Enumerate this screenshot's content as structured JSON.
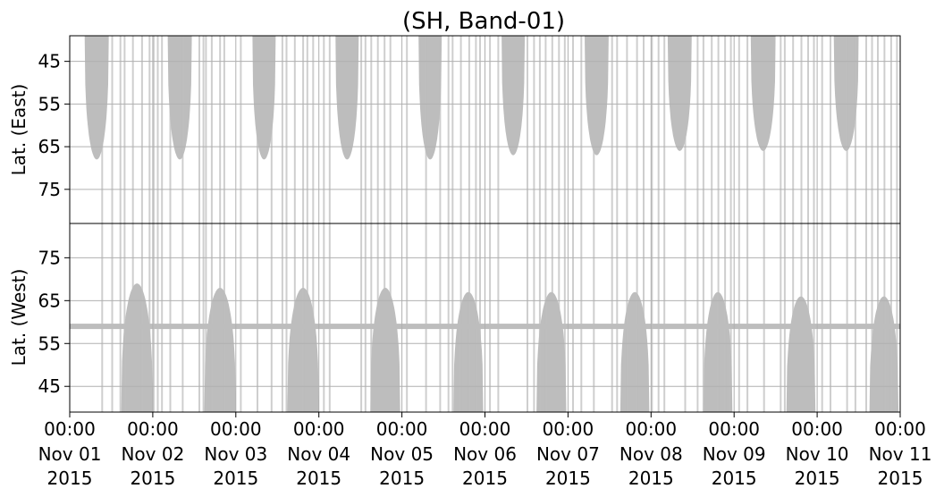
{
  "chart_data": {
    "type": "heatmap",
    "title": "(SH, Band-01)",
    "grid": true,
    "x_ticks": [
      {
        "time": "00:00",
        "date": "Nov 01",
        "year": "2015"
      },
      {
        "time": "00:00",
        "date": "Nov 02",
        "year": "2015"
      },
      {
        "time": "00:00",
        "date": "Nov 03",
        "year": "2015"
      },
      {
        "time": "00:00",
        "date": "Nov 04",
        "year": "2015"
      },
      {
        "time": "00:00",
        "date": "Nov 05",
        "year": "2015"
      },
      {
        "time": "00:00",
        "date": "Nov 06",
        "year": "2015"
      },
      {
        "time": "00:00",
        "date": "Nov 07",
        "year": "2015"
      },
      {
        "time": "00:00",
        "date": "Nov 08",
        "year": "2015"
      },
      {
        "time": "00:00",
        "date": "Nov 09",
        "year": "2015"
      },
      {
        "time": "00:00",
        "date": "Nov 10",
        "year": "2015"
      },
      {
        "time": "00:00",
        "date": "Nov 11",
        "year": "2015"
      }
    ],
    "x_range": [
      "2015-11-01 00:00",
      "2015-11-11 00:00"
    ],
    "east_panel": {
      "ylabel": "Lat. (East)",
      "yticks": [
        45,
        55,
        65,
        75
      ],
      "ylim": [
        39,
        83
      ],
      "inverted": true,
      "coverage_color": "#bdbdbd",
      "lobes": [
        {
          "start": 0.18,
          "end": 0.47,
          "max_lat": 68
        },
        {
          "start": 1.18,
          "end": 1.47,
          "max_lat": 68
        },
        {
          "start": 2.2,
          "end": 2.48,
          "max_lat": 68
        },
        {
          "start": 3.2,
          "end": 3.48,
          "max_lat": 68
        },
        {
          "start": 4.2,
          "end": 4.48,
          "max_lat": 68
        },
        {
          "start": 5.2,
          "end": 5.48,
          "max_lat": 67
        },
        {
          "start": 6.2,
          "end": 6.49,
          "max_lat": 67
        },
        {
          "start": 7.2,
          "end": 7.49,
          "max_lat": 66
        },
        {
          "start": 8.2,
          "end": 8.5,
          "max_lat": 66
        },
        {
          "start": 9.2,
          "end": 9.5,
          "max_lat": 66
        }
      ]
    },
    "west_panel": {
      "ylabel": "Lat. (West)",
      "yticks": [
        75,
        65,
        55,
        45
      ],
      "ylim": [
        83,
        39
      ],
      "coverage_color": "#bdbdbd",
      "band_lat": 59,
      "lobes": [
        {
          "start": 0.62,
          "end": 1.0,
          "max_lat": 69
        },
        {
          "start": 1.62,
          "end": 2.0,
          "max_lat": 68
        },
        {
          "start": 2.62,
          "end": 3.0,
          "max_lat": 68
        },
        {
          "start": 3.62,
          "end": 3.98,
          "max_lat": 68
        },
        {
          "start": 4.62,
          "end": 4.98,
          "max_lat": 67
        },
        {
          "start": 5.62,
          "end": 5.98,
          "max_lat": 67
        },
        {
          "start": 6.63,
          "end": 6.98,
          "max_lat": 67
        },
        {
          "start": 7.63,
          "end": 7.98,
          "max_lat": 67
        },
        {
          "start": 8.63,
          "end": 8.98,
          "max_lat": 66
        },
        {
          "start": 9.63,
          "end": 9.98,
          "max_lat": 66
        }
      ]
    },
    "vertical_streaks_days": [
      0.38,
      0.5,
      0.6,
      0.65,
      0.75,
      0.86,
      0.95,
      1.0,
      1.05,
      1.1,
      1.2,
      1.35,
      1.55,
      1.6,
      1.63,
      1.7,
      1.8,
      1.85,
      2.05,
      2.25,
      2.42,
      2.55,
      2.6,
      2.7,
      2.8,
      2.85,
      2.92,
      3.05,
      3.12,
      3.5,
      3.55,
      3.62,
      3.7,
      3.78,
      3.85,
      4.05,
      4.28,
      4.45,
      4.55,
      4.6,
      4.7,
      4.8,
      4.88,
      4.93,
      5.05,
      5.15,
      5.5,
      5.58,
      5.65,
      5.72,
      5.8,
      5.88,
      5.95,
      6.05,
      6.15,
      6.3,
      6.52,
      6.58,
      6.7,
      6.82,
      6.9,
      7.0,
      7.08,
      7.15,
      7.4,
      7.55,
      7.62,
      7.72,
      7.8,
      7.88,
      7.95,
      8.05,
      8.15,
      8.35,
      8.55,
      8.6,
      8.7,
      8.8,
      8.88,
      8.95,
      9.05,
      9.15,
      9.35,
      9.45,
      9.58,
      9.65,
      9.72,
      9.8,
      9.88,
      9.95
    ]
  }
}
